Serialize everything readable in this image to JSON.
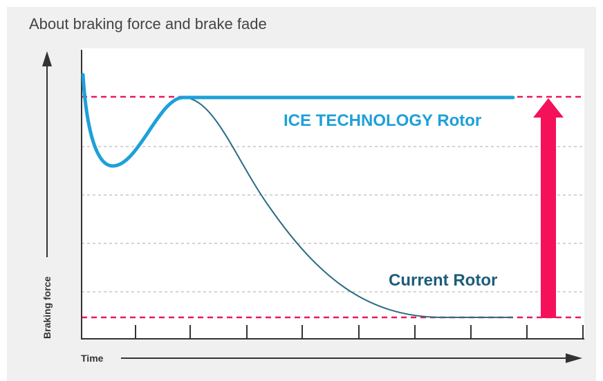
{
  "header": {
    "title": "About braking force and brake fade"
  },
  "axes": {
    "y_label": "Braking force",
    "x_label": "Time"
  },
  "curves": [
    {
      "label": "ICE TECHNOLOGY Rotor"
    },
    {
      "label": "Current Rotor"
    }
  ]
}
